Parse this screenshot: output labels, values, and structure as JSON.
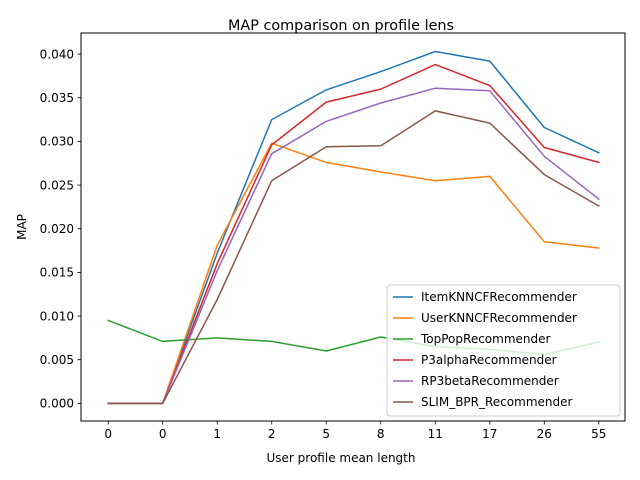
{
  "chart_data": {
    "type": "line",
    "title": "MAP comparison on profile lens",
    "xlabel": "User profile mean length",
    "ylabel": "MAP",
    "categories": [
      "0",
      "0",
      "1",
      "2",
      "5",
      "8",
      "11",
      "17",
      "26",
      "55"
    ],
    "ylim": [
      -0.00202,
      0.04242
    ],
    "yticks": [
      0.0,
      0.005,
      0.01,
      0.015,
      0.02,
      0.025,
      0.03,
      0.035,
      0.04
    ],
    "ytick_labels": [
      "0.000",
      "0.005",
      "0.010",
      "0.015",
      "0.020",
      "0.025",
      "0.030",
      "0.035",
      "0.040"
    ],
    "grid": false,
    "legend_position": "lower-right",
    "series": [
      {
        "name": "ItemKNNCFRecommender",
        "color": "#1f77b4",
        "values": [
          0.0,
          0.0,
          0.0172,
          0.0325,
          0.0359,
          0.038,
          0.0403,
          0.0392,
          0.0316,
          0.0287
        ]
      },
      {
        "name": "UserKNNCFRecommender",
        "color": "#ff7f0e",
        "values": [
          0.0,
          0.0,
          0.0181,
          0.0298,
          0.0276,
          0.0265,
          0.0255,
          0.026,
          0.0185,
          0.0178
        ]
      },
      {
        "name": "TopPopRecommender",
        "color": "#2ca02c",
        "values": [
          0.0095,
          0.0071,
          0.0075,
          0.0071,
          0.006,
          0.0076,
          0.0065,
          0.0062,
          0.0056,
          0.007
        ]
      },
      {
        "name": "P3alphaRecommender",
        "color": "#d62728",
        "values": [
          0.0,
          0.0,
          0.016,
          0.0296,
          0.0345,
          0.036,
          0.0388,
          0.0364,
          0.0293,
          0.0276
        ]
      },
      {
        "name": "RP3betaRecommender",
        "color": "#9467bd",
        "values": [
          0.0,
          0.0,
          0.0152,
          0.0286,
          0.0323,
          0.0344,
          0.0361,
          0.0358,
          0.0283,
          0.0234
        ]
      },
      {
        "name": "SLIM_BPR_Recommender",
        "color": "#8c564b",
        "values": [
          0.0,
          0.0,
          0.0119,
          0.0255,
          0.0294,
          0.0295,
          0.0335,
          0.0321,
          0.0262,
          0.0226
        ]
      }
    ]
  }
}
